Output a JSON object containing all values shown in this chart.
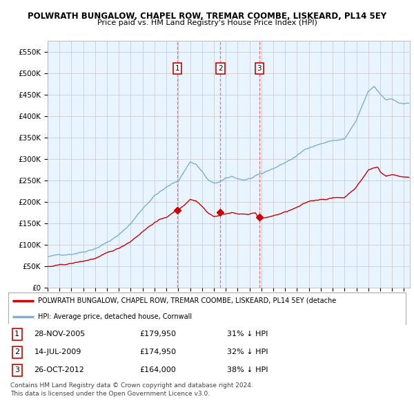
{
  "title": "POLWRATH BUNGALOW, CHAPEL ROW, TREMAR COOMBE, LISKEARD, PL14 5EY",
  "subtitle": "Price paid vs. HM Land Registry's House Price Index (HPI)",
  "ylim": [
    0,
    575000
  ],
  "xlim_start": 1995.0,
  "xlim_end": 2025.5,
  "sale_dates": [
    2005.91,
    2009.54,
    2012.82
  ],
  "sale_prices": [
    179950,
    174950,
    164000
  ],
  "sale_labels": [
    "1",
    "2",
    "3"
  ],
  "legend_line1": "POLWRATH BUNGALOW, CHAPEL ROW, TREMAR COOMBE, LISKEARD, PL14 5EY (detache",
  "legend_line2": "HPI: Average price, detached house, Cornwall",
  "footer1": "Contains HM Land Registry data © Crown copyright and database right 2024.",
  "footer2": "This data is licensed under the Open Government Licence v3.0.",
  "red_color": "#cc0000",
  "blue_color": "#7bafd4",
  "blue_fill": "#ddeeff",
  "background_color": "#ffffff",
  "grid_color": "#cccccc",
  "dashed_line_color": "#ff5555",
  "table_entries": [
    [
      "1",
      "28-NOV-2005",
      "£179,950",
      "31% ↓ HPI"
    ],
    [
      "2",
      "14-JUL-2009",
      "£174,950",
      "32% ↓ HPI"
    ],
    [
      "3",
      "26-OCT-2012",
      "£164,000",
      "38% ↓ HPI"
    ]
  ]
}
